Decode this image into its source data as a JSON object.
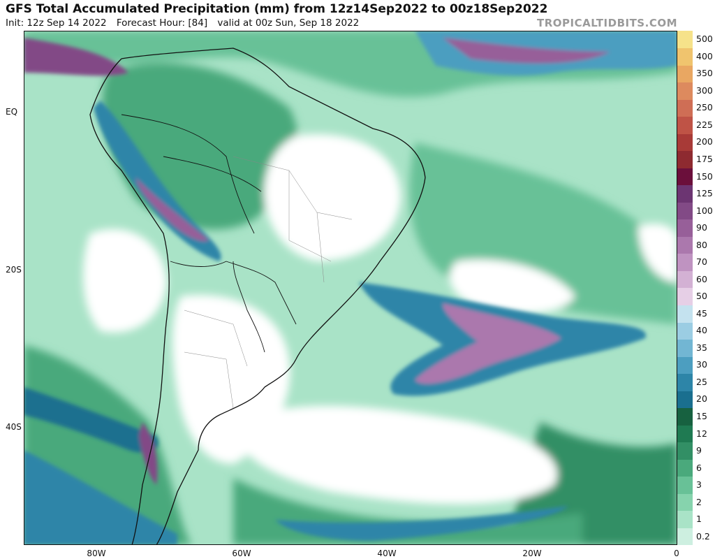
{
  "header": {
    "title": "GFS Total Accumulated Precipitation (mm) from 12z14Sep2022 to 00z18Sep2022",
    "init": "Init: 12z Sep 14 2022",
    "forecast_hour": "Forecast Hour: [84]",
    "valid": "valid at 00z Sun, Sep 18 2022",
    "brand": "TROPICALTIDBITS.COM"
  },
  "axes": {
    "y_ticks": [
      "EQ",
      "20S",
      "40S"
    ],
    "x_ticks": [
      "80W",
      "60W",
      "40W",
      "20W",
      "0"
    ]
  },
  "legend": {
    "levels": [
      {
        "label": "0.2",
        "color": "#cdefe0"
      },
      {
        "label": "1",
        "color": "#a9e3c7"
      },
      {
        "label": "2",
        "color": "#86d3ad"
      },
      {
        "label": "3",
        "color": "#68c197"
      },
      {
        "label": "6",
        "color": "#4aa97c"
      },
      {
        "label": "9",
        "color": "#328f65"
      },
      {
        "label": "12",
        "color": "#1f7a52"
      },
      {
        "label": "15",
        "color": "#176140"
      },
      {
        "label": "20",
        "color": "#1a6f8f"
      },
      {
        "label": "25",
        "color": "#2d85a8"
      },
      {
        "label": "30",
        "color": "#4c9ec0"
      },
      {
        "label": "35",
        "color": "#72b6d3"
      },
      {
        "label": "40",
        "color": "#9bcde3"
      },
      {
        "label": "45",
        "color": "#c4e2ef"
      },
      {
        "label": "50",
        "color": "#e6cfe6"
      },
      {
        "label": "60",
        "color": "#d3b1d4"
      },
      {
        "label": "70",
        "color": "#bf93c1"
      },
      {
        "label": "80",
        "color": "#ab78ad"
      },
      {
        "label": "90",
        "color": "#975f99"
      },
      {
        "label": "100",
        "color": "#824a86"
      },
      {
        "label": "125",
        "color": "#6c3572"
      },
      {
        "label": "150",
        "color": "#6b0f3b"
      },
      {
        "label": "175",
        "color": "#8e2a30"
      },
      {
        "label": "200",
        "color": "#a83a37"
      },
      {
        "label": "225",
        "color": "#bf5346"
      },
      {
        "label": "250",
        "color": "#cf6e55"
      },
      {
        "label": "300",
        "color": "#dd8a5e"
      },
      {
        "label": "350",
        "color": "#e9a762"
      },
      {
        "label": "400",
        "color": "#f0c46e"
      },
      {
        "label": "500",
        "color": "#f6e28a"
      }
    ]
  }
}
